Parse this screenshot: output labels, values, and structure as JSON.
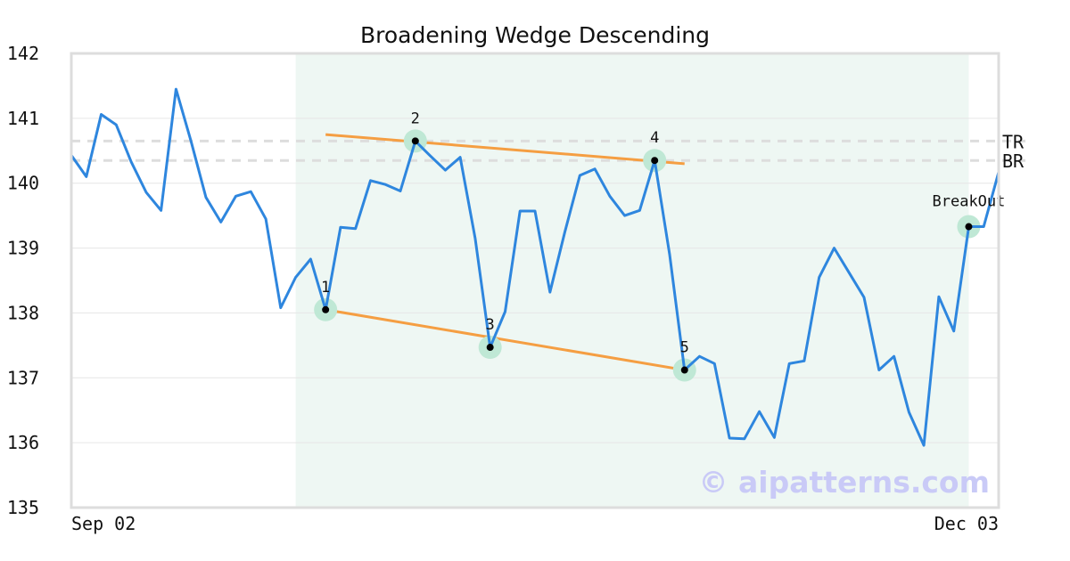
{
  "chart_data": {
    "type": "line",
    "title": "Broadening Wedge Descending",
    "xlabel": "",
    "ylabel": "",
    "ylim": [
      135,
      142
    ],
    "yticks": [
      135,
      136,
      137,
      138,
      139,
      140,
      141,
      142
    ],
    "x_tick_labels": [
      {
        "index": 0,
        "label": "Sep 02"
      },
      {
        "index": 62,
        "label": "Dec 03"
      }
    ],
    "series": [
      {
        "color": "#2e86de",
        "values": [
          140.43,
          140.1,
          141.06,
          140.9,
          140.33,
          139.86,
          139.58,
          141.45,
          140.65,
          139.78,
          139.4,
          139.8,
          139.87,
          139.45,
          138.08,
          138.55,
          138.83,
          138.05,
          139.32,
          139.3,
          140.04,
          139.98,
          139.88,
          140.65,
          140.42,
          140.2,
          140.4,
          139.15,
          137.47,
          138.02,
          139.57,
          139.57,
          138.32,
          139.25,
          140.12,
          140.22,
          139.8,
          139.5,
          139.58,
          140.35,
          138.9,
          137.12,
          137.33,
          137.22,
          136.07,
          136.06,
          136.48,
          136.08,
          137.22,
          137.26,
          138.55,
          139.0,
          138.62,
          138.24,
          137.12,
          137.33,
          136.47,
          135.96,
          138.25,
          137.72,
          139.33,
          139.33,
          140.17
        ]
      }
    ],
    "highlight_region": {
      "start_index": 15,
      "end_index": 60,
      "color": "#eef7f3"
    },
    "trend_lines": [
      {
        "name": "upper",
        "color": "#f59e42",
        "from": {
          "index": 17,
          "value": 140.75
        },
        "to": {
          "index": 41,
          "value": 140.3
        }
      },
      {
        "name": "lower",
        "color": "#f59e42",
        "from": {
          "index": 17,
          "value": 138.05
        },
        "to": {
          "index": 41,
          "value": 137.12
        }
      }
    ],
    "pivots": [
      {
        "label": "1",
        "index": 17,
        "value": 138.05
      },
      {
        "label": "2",
        "index": 23,
        "value": 140.65
      },
      {
        "label": "3",
        "index": 28,
        "value": 137.47
      },
      {
        "label": "4",
        "index": 39,
        "value": 140.35
      },
      {
        "label": "5",
        "index": 41,
        "value": 137.12
      },
      {
        "label": "BreakOut",
        "index": 60,
        "value": 139.33
      }
    ],
    "levels": [
      {
        "label": "TR",
        "value": 140.65
      },
      {
        "label": "BR",
        "value": 140.35
      }
    ],
    "grid": true,
    "watermark": "© aipatterns.com"
  }
}
